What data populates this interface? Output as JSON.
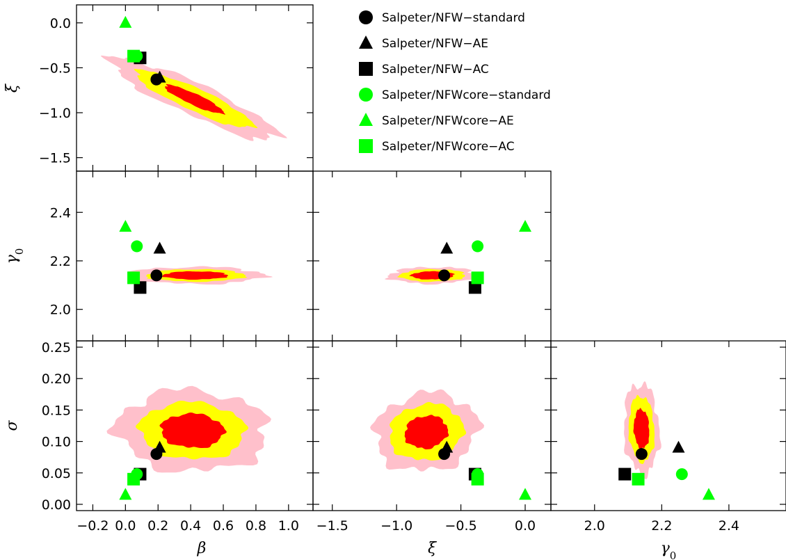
{
  "chart_data": {
    "type": "scatter",
    "kind": "corner-plot",
    "description_free": true,
    "contour_colors": {
      "sigma1": "#ff0000",
      "sigma2": "#ffff00",
      "sigma3": "#ffc0cb"
    },
    "parameters": {
      "beta": {
        "label": "β",
        "range": [
          -0.3,
          1.15
        ],
        "ticks": [
          -0.2,
          0.0,
          0.2,
          0.4,
          0.6,
          0.8,
          1.0
        ],
        "tick_labels": [
          "−0.2",
          "0.0",
          "0.2",
          "0.4",
          "0.6",
          "0.8",
          "1.0"
        ]
      },
      "xi": {
        "label": "ξ",
        "range": [
          -1.65,
          0.2
        ],
        "ticks": [
          0.0,
          -0.5,
          -1.0,
          -1.5
        ],
        "tick_labels": [
          "0.0",
          "−0.5",
          "−1.0",
          "−1.5"
        ],
        "x_ticks": [
          -1.5,
          -1.0,
          -0.5,
          0.0
        ],
        "x_tick_labels": [
          "−1.5",
          "−1.0",
          "−0.5",
          "0.0"
        ]
      },
      "gamma0": {
        "label": "γ0",
        "label_main": "γ",
        "label_sub": "0",
        "range": [
          1.87,
          2.57
        ],
        "ticks": [
          2.0,
          2.2,
          2.4
        ],
        "tick_labels": [
          "2.0",
          "2.2",
          "2.4"
        ]
      },
      "sigma": {
        "label": "σ",
        "range": [
          -0.01,
          0.26
        ],
        "ticks": [
          0.0,
          0.05,
          0.1,
          0.15,
          0.2,
          0.25
        ],
        "tick_labels": [
          "0.00",
          "0.05",
          "0.10",
          "0.15",
          "0.20",
          "0.25"
        ]
      }
    },
    "markers": [
      {
        "name": "Salpeter/NFW−standard",
        "shape": "circle",
        "color": "#000000",
        "beta": 0.19,
        "xi": -0.63,
        "gamma0": 2.14,
        "sigma": 0.08
      },
      {
        "name": "Salpeter/NFW−AE",
        "shape": "triangle",
        "color": "#000000",
        "beta": 0.21,
        "xi": -0.61,
        "gamma0": 2.25,
        "sigma": 0.09
      },
      {
        "name": "Salpeter/NFW−AC",
        "shape": "square",
        "color": "#000000",
        "beta": 0.09,
        "xi": -0.39,
        "gamma0": 2.09,
        "sigma": 0.048
      },
      {
        "name": "Salpeter/NFWcore−standard",
        "shape": "circle",
        "color": "#00ff00",
        "beta": 0.07,
        "xi": -0.37,
        "gamma0": 2.26,
        "sigma": 0.048
      },
      {
        "name": "Salpeter/NFWcore−AE",
        "shape": "triangle",
        "color": "#00ff00",
        "beta": 0.0,
        "xi": 0.0,
        "gamma0": 2.34,
        "sigma": 0.015
      },
      {
        "name": "Salpeter/NFWcore−AC",
        "shape": "square",
        "color": "#00ff00",
        "beta": 0.05,
        "xi": -0.37,
        "gamma0": 2.13,
        "sigma": 0.04
      }
    ],
    "contours": [
      {
        "x": "beta",
        "y": "xi",
        "center": [
          0.42,
          -0.85
        ],
        "sig": [
          0.18,
          0.16
        ],
        "rho": -0.9,
        "levels": [
          1.0,
          2.0,
          2.85
        ]
      },
      {
        "x": "beta",
        "y": "gamma0",
        "center": [
          0.43,
          2.14
        ],
        "sig": [
          0.19,
          0.016
        ],
        "rho": 0.0,
        "levels": [
          1.05,
          1.6,
          2.2
        ]
      },
      {
        "x": "xi",
        "y": "gamma0",
        "center": [
          -0.72,
          2.14
        ],
        "sig": [
          0.16,
          0.016
        ],
        "rho": 0.05,
        "levels": [
          1.05,
          1.6,
          2.15
        ]
      },
      {
        "x": "beta",
        "y": "sigma",
        "center": [
          0.41,
          0.117
        ],
        "sig": [
          0.185,
          0.026
        ],
        "rho": -0.05,
        "levels": [
          1.05,
          1.75,
          2.5
        ]
      },
      {
        "x": "xi",
        "y": "sigma",
        "center": [
          -0.77,
          0.115
        ],
        "sig": [
          0.16,
          0.025
        ],
        "rho": 0.1,
        "levels": [
          1.05,
          1.8,
          2.5
        ]
      },
      {
        "x": "gamma0",
        "y": "sigma",
        "center": [
          2.14,
          0.12
        ],
        "sig": [
          0.022,
          0.03
        ],
        "rho": -0.1,
        "levels": [
          1.05,
          1.75,
          2.4
        ]
      }
    ]
  }
}
